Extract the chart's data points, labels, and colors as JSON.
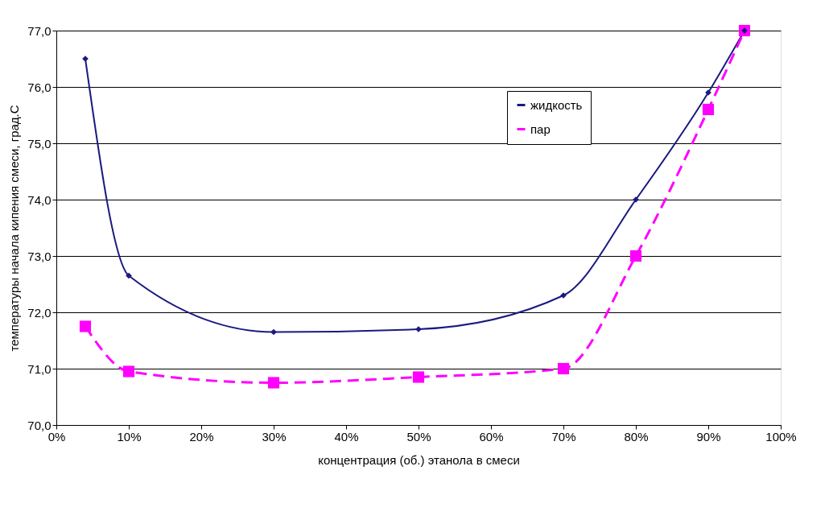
{
  "chart_data": {
    "type": "line",
    "xlabel": "концентрация (об.)  этанола в смеси",
    "ylabel": "температуры начала кипения смеси, град.С",
    "xlim": [
      0,
      100
    ],
    "xticks": [
      {
        "value": 0,
        "label": "0%"
      },
      {
        "value": 10,
        "label": "10%"
      },
      {
        "value": 20,
        "label": "20%"
      },
      {
        "value": 30,
        "label": "30%"
      },
      {
        "value": 40,
        "label": "40%"
      },
      {
        "value": 50,
        "label": "50%"
      },
      {
        "value": 60,
        "label": "60%"
      },
      {
        "value": 70,
        "label": "70%"
      },
      {
        "value": 80,
        "label": "80%"
      },
      {
        "value": 90,
        "label": "90%"
      },
      {
        "value": 100,
        "label": "100%"
      }
    ],
    "ylim": [
      70,
      77
    ],
    "yticks": [
      {
        "value": 70,
        "label": "70,0"
      },
      {
        "value": 71,
        "label": "71,0"
      },
      {
        "value": 72,
        "label": "72,0"
      },
      {
        "value": 73,
        "label": "73,0"
      },
      {
        "value": 74,
        "label": "74,0"
      },
      {
        "value": 75,
        "label": "75,0"
      },
      {
        "value": 76,
        "label": "76,0"
      },
      {
        "value": 77,
        "label": "77,0"
      }
    ],
    "grid": "y",
    "legend": "top right",
    "series": [
      {
        "name": "жидкость",
        "color": "#1a1a80",
        "marker": "diamond",
        "line_style": "solid",
        "x": [
          4,
          10,
          30,
          50,
          70,
          80,
          90,
          95
        ],
        "values": [
          76.5,
          72.65,
          71.65,
          71.7,
          72.3,
          74.0,
          75.9,
          77.0
        ]
      },
      {
        "name": "пар",
        "color": "#ff00ff",
        "marker": "square",
        "line_style": "dashed",
        "x": [
          4,
          10,
          30,
          50,
          70,
          80,
          90,
          95
        ],
        "values": [
          71.75,
          70.95,
          70.75,
          70.85,
          71.0,
          73.0,
          75.6,
          77.0
        ]
      }
    ]
  }
}
